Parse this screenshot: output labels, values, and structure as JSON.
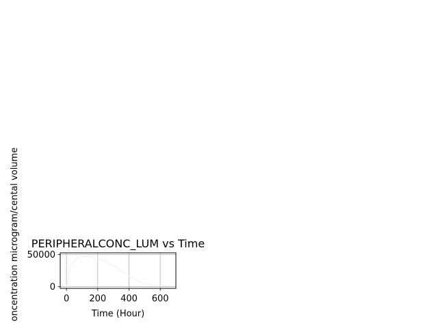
{
  "chart_data": {
    "type": "line",
    "title": "PERIPHERALCONC_LUM vs Time",
    "xlabel": "Time (Hour)",
    "ylabel": "oncentration microgram/cental volume",
    "xlim": [
      -40,
      700
    ],
    "ylim": [
      -2500,
      52500
    ],
    "xticks": [
      0,
      200,
      400,
      600
    ],
    "xtick_labels": [
      "0",
      "200",
      "400",
      "600"
    ],
    "yticks": [
      0,
      50000
    ],
    "ytick_labels": [
      "0",
      "50000"
    ],
    "grid": true,
    "series": [
      {
        "color": "#f2f2f2",
        "x": [
          0,
          24,
          48,
          72,
          100,
          150,
          200,
          250,
          300,
          350,
          400,
          450,
          500,
          550,
          600,
          650,
          672
        ],
        "y": [
          0,
          30000,
          40000,
          45000,
          47000,
          46500,
          44000,
          40000,
          33000,
          25000,
          17000,
          10000,
          5000,
          3000,
          2000,
          1500,
          1200
        ]
      }
    ]
  }
}
